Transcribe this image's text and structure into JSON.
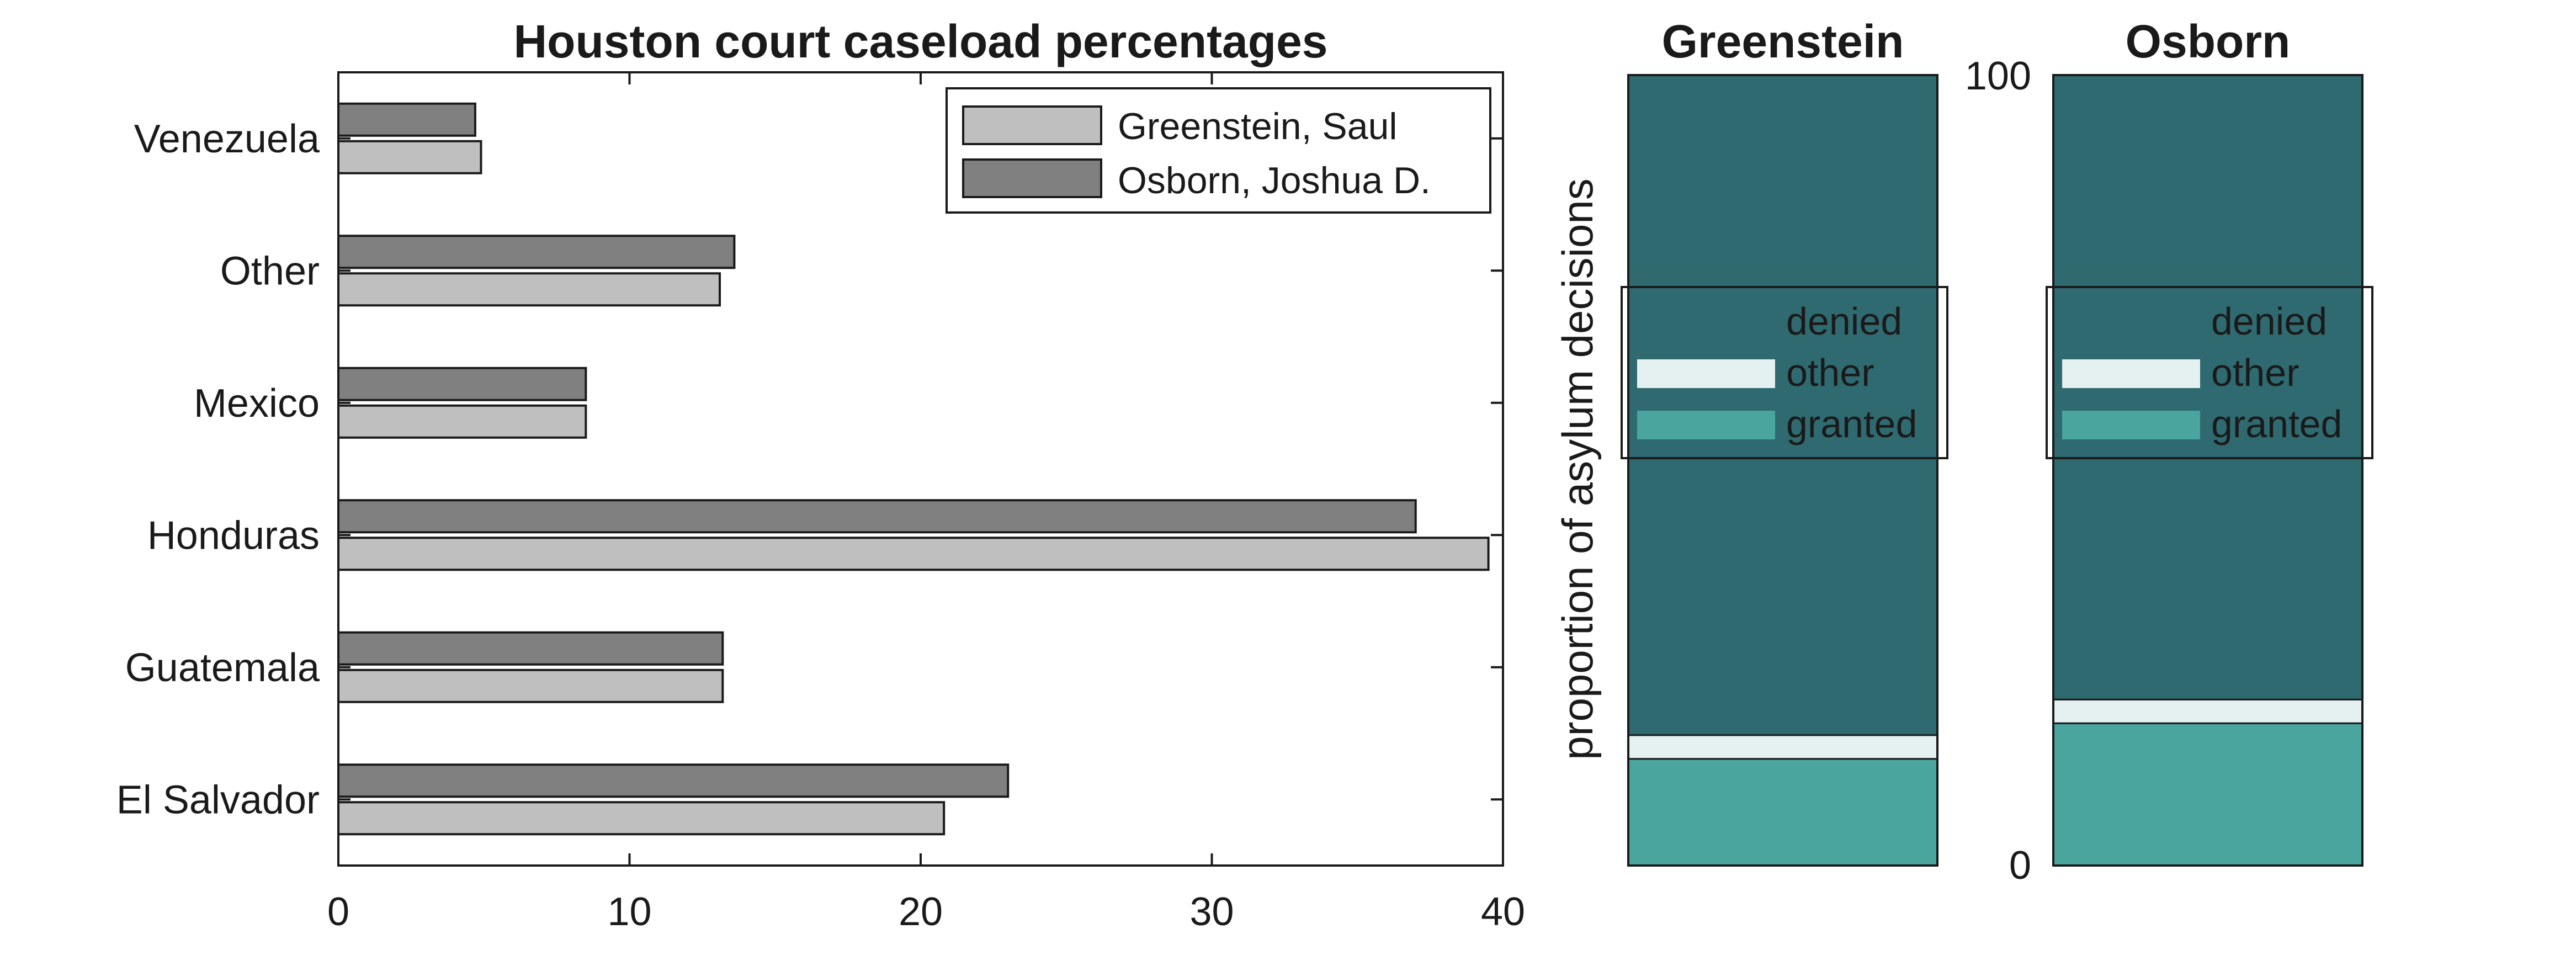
{
  "chart_data": [
    {
      "type": "bar",
      "orientation": "horizontal",
      "title": "Houston court caseload percentages",
      "categories": [
        "El Salvador",
        "Guatemala",
        "Honduras",
        "Mexico",
        "Other",
        "Venezuela"
      ],
      "series": [
        {
          "name": "Greenstein, Saul",
          "color": "#bfbfbf",
          "values": [
            20.8,
            13.2,
            39.5,
            8.5,
            13.1,
            4.9
          ]
        },
        {
          "name": "Osborn, Joshua D.",
          "color": "#808080",
          "values": [
            23.0,
            13.2,
            37.0,
            8.5,
            13.6,
            4.7
          ]
        }
      ],
      "xlim": [
        0,
        40
      ],
      "xticks": [
        0,
        10,
        20,
        30,
        40
      ],
      "legend_position": "top-right",
      "grid": false
    },
    {
      "type": "bar",
      "stacked": true,
      "ylabel": "proportion of asylum decisions",
      "ylim": [
        0,
        100
      ],
      "yticks": [
        0,
        100
      ],
      "legend_position": "center",
      "series_order": [
        "granted",
        "other",
        "denied"
      ],
      "segments": [
        {
          "name": "denied",
          "color": "#2e6a70"
        },
        {
          "name": "other",
          "color": "#e5f0f0"
        },
        {
          "name": "granted",
          "color": "#4aa59f"
        }
      ],
      "panels": [
        {
          "title": "Greenstein",
          "values": {
            "granted": 13.5,
            "other": 3.0,
            "denied": 83.5
          }
        },
        {
          "title": "Osborn",
          "values": {
            "granted": 18.0,
            "other": 3.0,
            "denied": 79.0
          }
        }
      ],
      "grid": false
    }
  ]
}
